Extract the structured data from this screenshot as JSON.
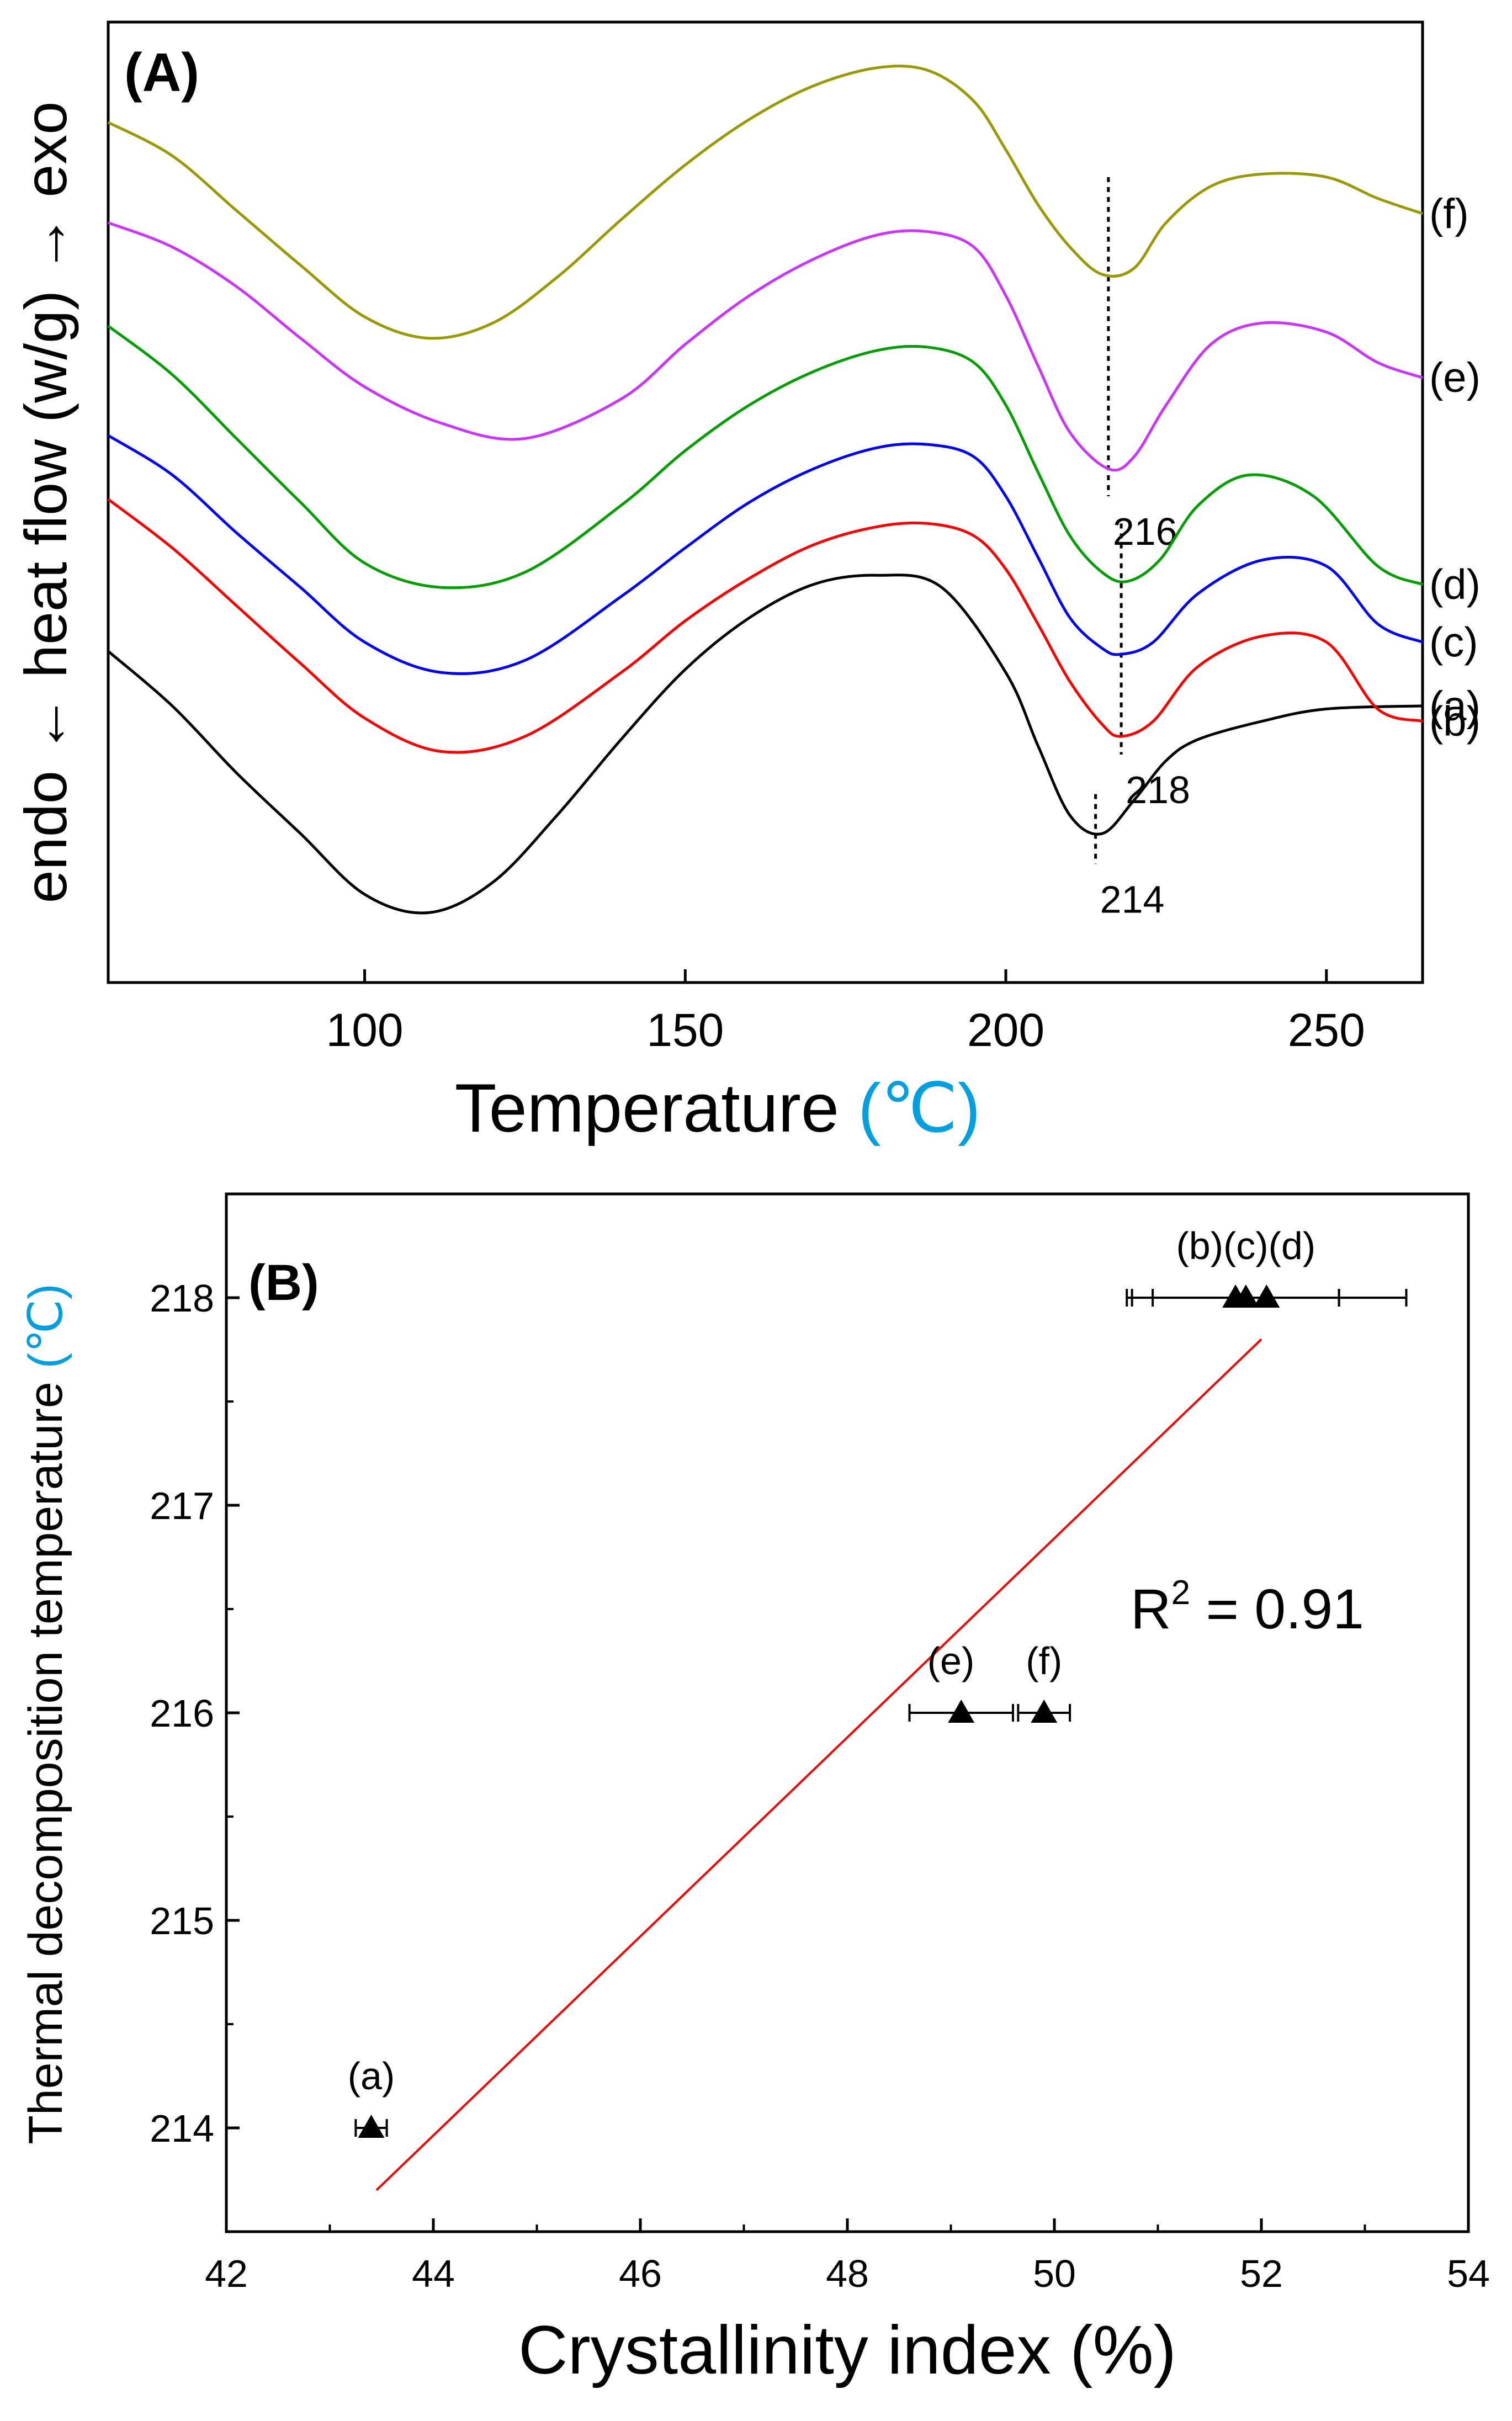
{
  "panelA": {
    "panel_label": "(A)",
    "chart_data": {
      "type": "line",
      "title": "(A)",
      "xlabel": "Temperature",
      "xlabel_unit": "(℃)",
      "ylabel": "endo ← heat flow (w/g) → exo",
      "xlim": [
        60,
        265
      ],
      "xticks": [
        100,
        150,
        200,
        250
      ],
      "series": [
        {
          "name": "(a)",
          "color": "#000000",
          "x": [
            60,
            70,
            80,
            90,
            100,
            110,
            120,
            130,
            140,
            150,
            160,
            170,
            180,
            190,
            200,
            205,
            210,
            215,
            220,
            225,
            230,
            240,
            250,
            265
          ],
          "y": [
            5.45,
            4.55,
            3.45,
            2.45,
            1.45,
            1.15,
            1.65,
            2.75,
            4.0,
            5.15,
            6.0,
            6.55,
            6.7,
            6.5,
            5.1,
            3.9,
            2.75,
            2.45,
            3.0,
            3.65,
            4.0,
            4.3,
            4.5,
            4.55
          ]
        },
        {
          "name": "(b)",
          "color": "#ff0000",
          "x": [
            60,
            70,
            80,
            90,
            100,
            112,
            125,
            140,
            150,
            160,
            170,
            180,
            188,
            195,
            200,
            205,
            210,
            215,
            218,
            223,
            230,
            240,
            250,
            258,
            265
          ],
          "y": [
            7.95,
            7.15,
            6.2,
            5.25,
            4.35,
            3.8,
            4.05,
            5.1,
            5.95,
            6.65,
            7.2,
            7.5,
            7.55,
            7.35,
            6.8,
            5.9,
            4.95,
            4.25,
            4.05,
            4.3,
            5.2,
            5.7,
            5.6,
            4.5,
            4.3
          ]
        },
        {
          "name": "(c)",
          "color": "#0000ff",
          "x": [
            60,
            70,
            80,
            90,
            100,
            112,
            125,
            140,
            150,
            160,
            170,
            180,
            188,
            195,
            200,
            205,
            210,
            215,
            218,
            223,
            230,
            240,
            250,
            258,
            265
          ],
          "y": [
            9.0,
            8.35,
            7.4,
            6.5,
            5.6,
            5.1,
            5.3,
            6.35,
            7.15,
            7.9,
            8.45,
            8.8,
            8.85,
            8.65,
            8.0,
            7.0,
            6.0,
            5.5,
            5.4,
            5.6,
            6.4,
            6.95,
            6.85,
            5.9,
            5.6
          ]
        },
        {
          "name": "(d)",
          "color": "#00a000",
          "x": [
            60,
            70,
            80,
            90,
            100,
            112,
            125,
            140,
            150,
            160,
            170,
            180,
            188,
            195,
            200,
            205,
            210,
            215,
            219,
            224,
            230,
            238,
            248,
            258,
            265
          ],
          "y": [
            10.8,
            10.0,
            8.95,
            7.9,
            6.9,
            6.5,
            6.75,
            7.85,
            8.75,
            9.5,
            10.05,
            10.4,
            10.45,
            10.2,
            9.5,
            8.4,
            7.35,
            6.75,
            6.6,
            6.95,
            7.85,
            8.35,
            8.0,
            6.85,
            6.55
          ]
        },
        {
          "name": "(e)",
          "color": "#cc33ff",
          "x": [
            60,
            70,
            80,
            90,
            100,
            112,
            125,
            140,
            150,
            160,
            170,
            180,
            188,
            195,
            200,
            205,
            210,
            216,
            220,
            225,
            232,
            240,
            250,
            258,
            265
          ],
          "y": [
            12.5,
            12.1,
            11.45,
            10.6,
            9.8,
            9.2,
            8.95,
            9.6,
            10.5,
            11.3,
            11.9,
            12.3,
            12.35,
            12.1,
            11.3,
            10.15,
            9.05,
            8.45,
            8.65,
            9.5,
            10.5,
            10.85,
            10.7,
            10.2,
            9.95
          ]
        },
        {
          "name": "(f)",
          "color": "#999900",
          "x": [
            60,
            70,
            80,
            90,
            100,
            110,
            120,
            130,
            140,
            150,
            160,
            170,
            180,
            188,
            195,
            200,
            205,
            210,
            215,
            220,
            225,
            232,
            240,
            250,
            258,
            265
          ],
          "y": [
            14.15,
            13.6,
            12.7,
            11.8,
            10.95,
            10.6,
            10.85,
            11.6,
            12.55,
            13.45,
            14.2,
            14.75,
            15.05,
            15.0,
            14.5,
            13.7,
            12.8,
            12.1,
            11.65,
            11.75,
            12.5,
            13.1,
            13.3,
            13.25,
            12.9,
            12.65
          ]
        }
      ],
      "annotations": [
        {
          "text": "214",
          "x": 214,
          "y_top": 3.1,
          "y_bottom": 1.95
        },
        {
          "text": "216",
          "x": 216,
          "y_top": 13.25,
          "y_bottom": 8.0
        },
        {
          "text": "218",
          "x": 218,
          "y_top": 7.55,
          "y_bottom": 3.75
        }
      ],
      "ylim": [
        0,
        15.8
      ]
    }
  },
  "panelB": {
    "panel_label": "(B)",
    "chart_data": {
      "type": "scatter",
      "title": "(B)",
      "xlabel": "Crystallinity index (%)",
      "ylabel": "Thermal decomposition temperature",
      "ylabel_unit": "(℃)",
      "xlim": [
        42,
        54
      ],
      "ylim": [
        213.5,
        218.5
      ],
      "xticks": [
        42,
        44,
        46,
        48,
        50,
        52,
        54
      ],
      "yticks": [
        214,
        215,
        216,
        217,
        218
      ],
      "points": [
        {
          "label": "(a)",
          "x": 43.4,
          "y": 214,
          "xerr": 0.15
        },
        {
          "label": "(b)",
          "x": 51.75,
          "y": 218,
          "xerr": 1.0
        },
        {
          "label": "(c)",
          "x": 51.85,
          "y": 218,
          "xerr": 0.9
        },
        {
          "label": "(d)",
          "x": 52.05,
          "y": 218,
          "xerr": 1.35
        },
        {
          "label": "(e)",
          "x": 49.1,
          "y": 216,
          "xerr": 0.5
        },
        {
          "label": "(f)",
          "x": 49.9,
          "y": 216,
          "xerr": 0.25
        }
      ],
      "point_labels": [
        {
          "text": "(a)",
          "x": 43.4,
          "y": 214
        },
        {
          "text": "(b)(c)(d)",
          "x": 51.85,
          "y": 218
        },
        {
          "text": "(e)",
          "x": 49.0,
          "y": 216
        },
        {
          "text": "(f)",
          "x": 49.9,
          "y": 216
        }
      ],
      "fit": {
        "x1": 43.45,
        "y1": 213.7,
        "x2": 52.0,
        "y2": 217.8,
        "color": "#ff0000"
      },
      "r2_prefix": "R",
      "r2_sup": "2",
      "r2_value": " = 0.91"
    }
  }
}
